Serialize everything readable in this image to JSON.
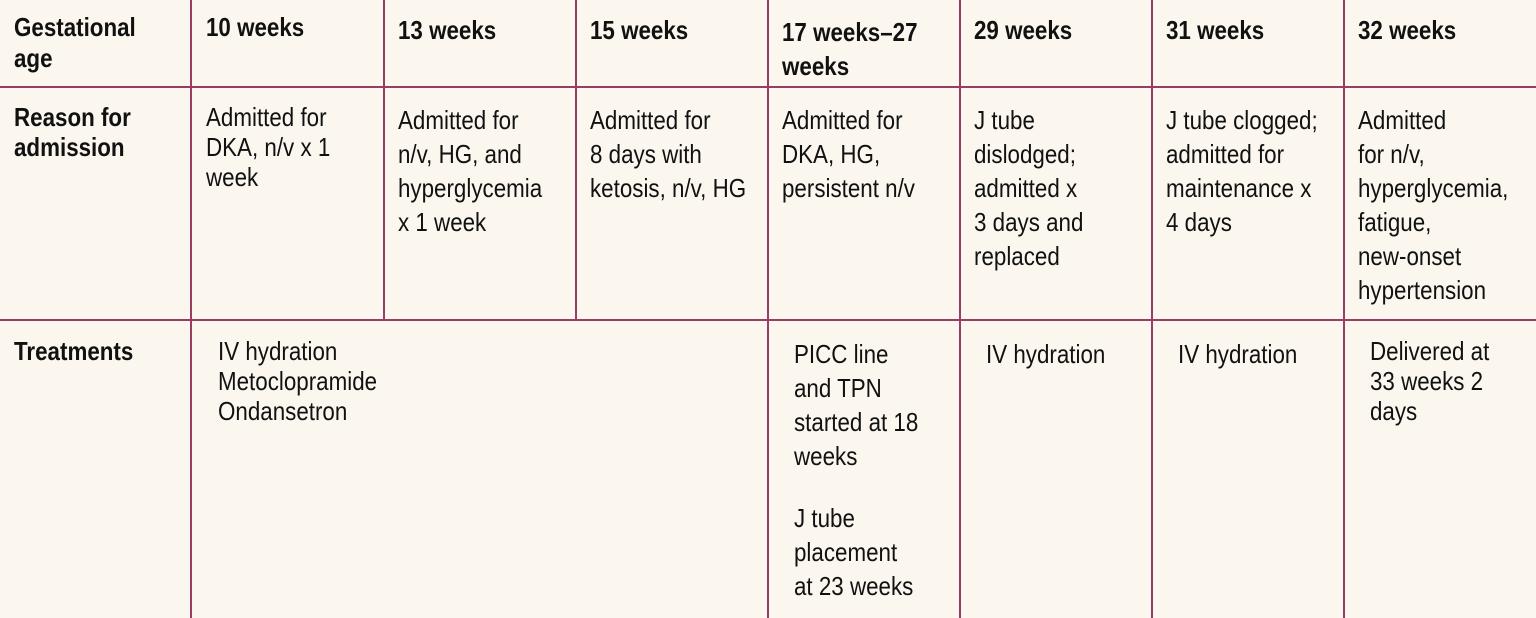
{
  "table": {
    "header": {
      "row_label": "Gestational\nage",
      "columns": [
        "10 weeks",
        "13 weeks",
        "15 weeks",
        "17 weeks–27\nweeks",
        "29 weeks",
        "31 weeks",
        "32 weeks"
      ]
    },
    "reason_row": {
      "label": "Reason for\nadmission",
      "cells": [
        "Admitted for\nDKA, n/v x 1\nweek",
        "Admitted for\nn/v, HG, and\nhyperglycemia\nx 1 week",
        "Admitted for\n8 days with\nketosis, n/v, HG",
        "Admitted for\nDKA, HG,\npersistent n/v",
        "J tube\ndislodged;\nadmitted x\n3 days and\nreplaced",
        "J tube clogged;\nadmitted for\nmaintenance x\n4 days",
        "Admitted\nfor n/v,\nhyperglycemia,\nfatigue,\nnew-onset\nhypertension"
      ]
    },
    "treatments_row": {
      "label": "Treatments",
      "cells": {
        "early": "IV hydration\nMetoclopramide\nOndansetron",
        "mid_a": "PICC line\nand TPN\nstarted at 18\nweeks",
        "mid_b": "J tube\nplacement\nat 23 weeks",
        "wk29": "IV hydration",
        "wk31": "IV hydration",
        "wk32": "Delivered at\n33 weeks 2\ndays"
      }
    }
  }
}
